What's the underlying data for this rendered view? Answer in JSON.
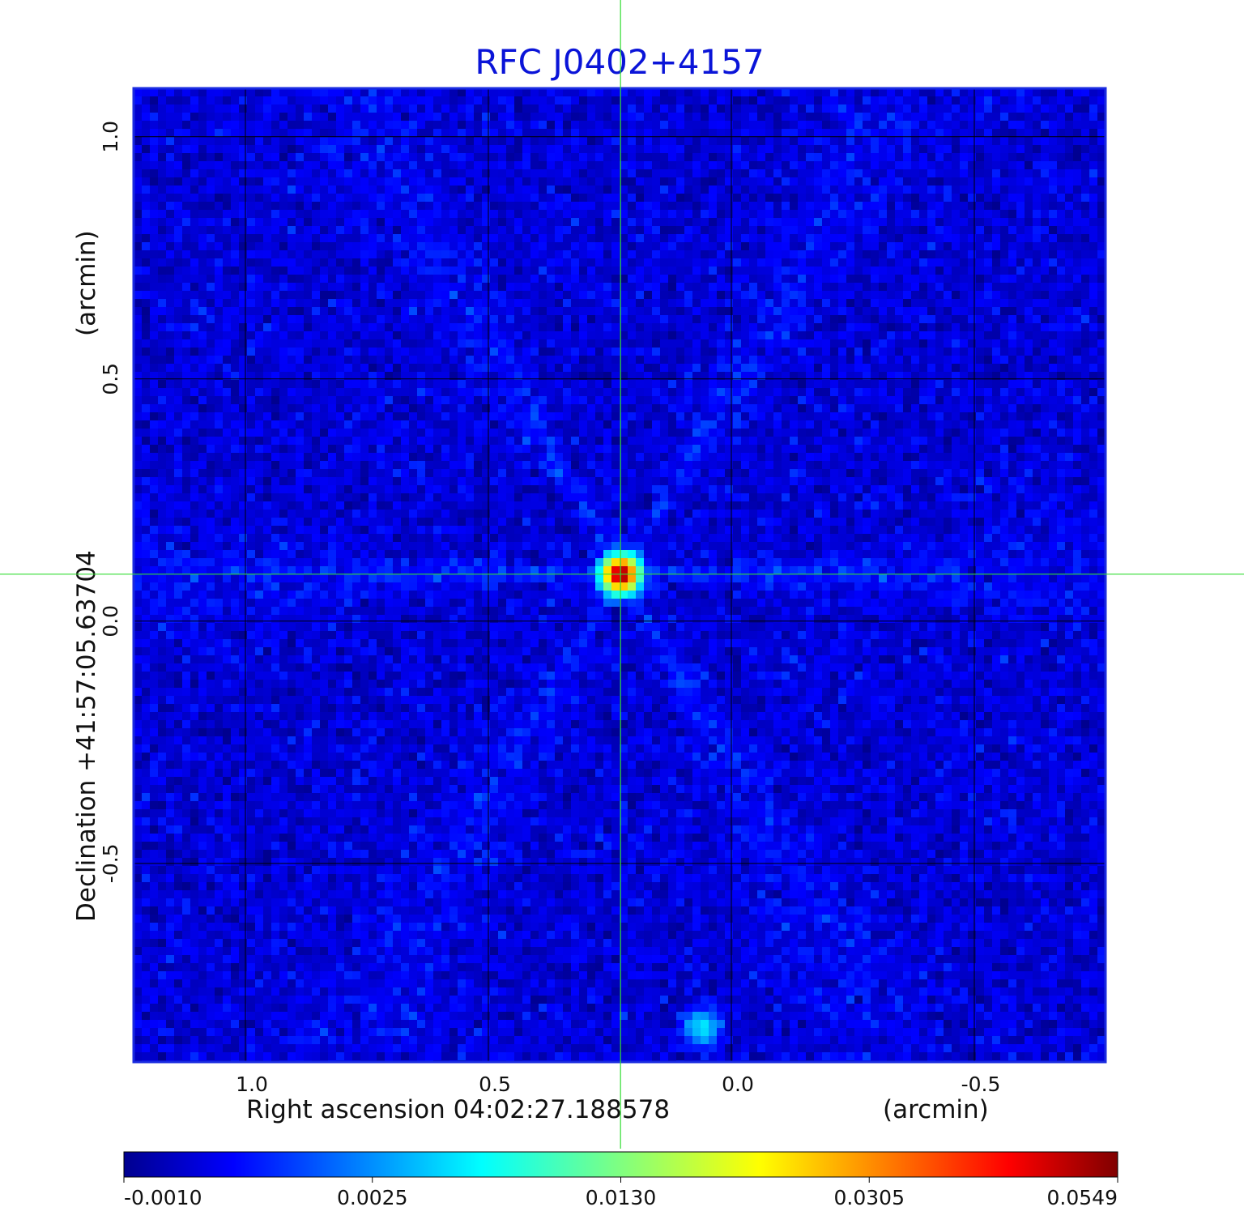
{
  "chart_data": {
    "type": "heatmap",
    "title": "RFC J0402+4157",
    "xlabel": "Right ascension  04:02:27.188578",
    "xlabel_unit": "(arcmin)",
    "ylabel": "Declination  +41:57:05.63704",
    "ylabel_unit": "(arcmin)",
    "xlim": [
      1.23,
      -0.77
    ],
    "ylim": [
      -0.91,
      1.1
    ],
    "x_ticks": [
      {
        "value": 1.0,
        "label": "1.0"
      },
      {
        "value": 0.5,
        "label": "0.5"
      },
      {
        "value": 0.0,
        "label": "0.0"
      },
      {
        "value": -0.5,
        "label": "-0.5"
      }
    ],
    "y_ticks": [
      {
        "value": 1.0,
        "label": "1.0"
      },
      {
        "value": 0.5,
        "label": "0.5"
      },
      {
        "value": 0.0,
        "label": "0.0"
      },
      {
        "value": -0.5,
        "label": "-0.5"
      }
    ],
    "grid": true,
    "crosshair": {
      "x": 0.228,
      "y": 0.097,
      "color": "#33dd33"
    },
    "colormap": "jet",
    "colorbar": {
      "range": [
        -0.001,
        0.0549
      ],
      "tick_labels": [
        "-0.0010",
        "0.0025",
        "0.0130",
        "0.0305",
        "0.0549"
      ]
    },
    "sources": [
      {
        "x": 0.228,
        "y": 0.097,
        "peak": 0.0549
      },
      {
        "x": 0.06,
        "y": -0.84,
        "peak": 0.006
      }
    ],
    "background_level": 0.0,
    "noise_rms": 0.0007
  },
  "colors": {
    "title": "#0a14d8",
    "frame": "#1a2be0",
    "grid": "#000000",
    "crosshair": "#33dd33"
  }
}
